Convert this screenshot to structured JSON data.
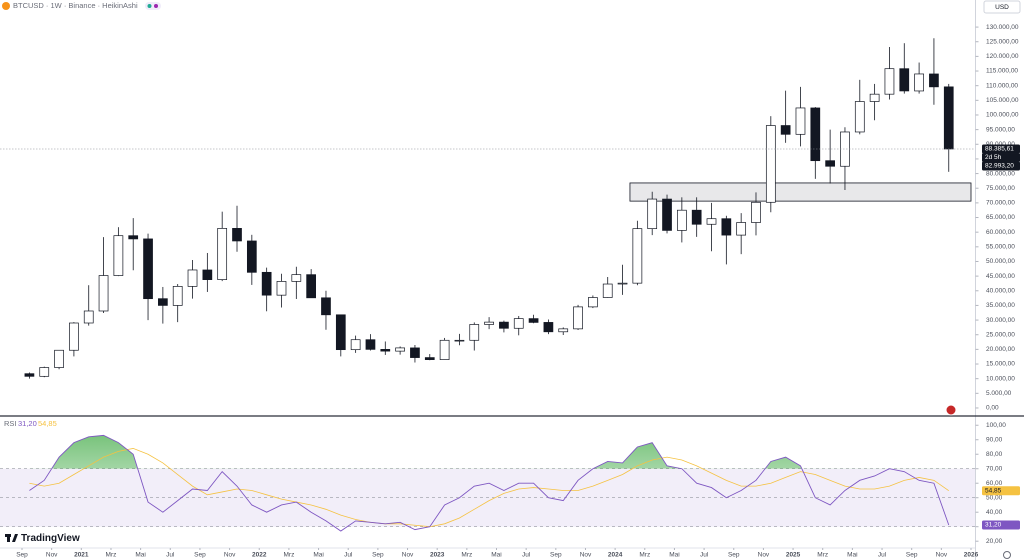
{
  "header": {
    "title": "BTCUSD · 1W · Binance · HeikinAshi",
    "currency": "USD",
    "brand": "TradingView"
  },
  "chart_data": [
    {
      "type": "candlestick",
      "x": [
        "2020-09",
        "2020-10",
        "2020-11",
        "2020-12",
        "2021-01",
        "2021-02",
        "2021-03",
        "2021-04",
        "2021-05",
        "2021-06",
        "2021-07",
        "2021-08",
        "2021-09",
        "2021-10",
        "2021-11",
        "2021-12",
        "2022-01",
        "2022-02",
        "2022-03",
        "2022-04",
        "2022-05",
        "2022-06",
        "2022-07",
        "2022-08",
        "2022-09",
        "2022-10",
        "2022-11",
        "2022-12",
        "2023-01",
        "2023-02",
        "2023-03",
        "2023-04",
        "2023-05",
        "2023-06",
        "2023-07",
        "2023-08",
        "2023-09",
        "2023-10",
        "2023-11",
        "2023-12",
        "2024-01",
        "2024-02",
        "2024-03",
        "2024-04",
        "2024-05",
        "2024-06",
        "2024-07",
        "2024-08",
        "2024-09",
        "2024-10",
        "2024-11",
        "2024-12",
        "2025-01",
        "2025-02",
        "2025-03",
        "2025-04",
        "2025-05",
        "2025-06",
        "2025-07",
        "2025-08",
        "2025-09",
        "2025-10",
        "2025-11"
      ],
      "open": [
        11700,
        10800,
        13800,
        19700,
        29000,
        33100,
        45200,
        58800,
        57700,
        37300,
        35000,
        41500,
        47100,
        43800,
        61300,
        57000,
        46300,
        38500,
        43200,
        45500,
        37600,
        31800,
        19900,
        23300,
        20000,
        19400,
        20500,
        17200,
        16500,
        23100,
        23100,
        28500,
        29300,
        27200,
        30500,
        29200,
        26000,
        27000,
        34500,
        37700,
        42300,
        42600,
        61200,
        71300,
        60600,
        67500,
        62700,
        64600,
        59000,
        63300,
        70200,
        96400,
        93400,
        102400,
        84400,
        82500,
        94200,
        104600,
        107100,
        115800,
        108200,
        114000,
        109600
      ],
      "high": [
        12100,
        14100,
        19800,
        29300,
        41900,
        58300,
        61700,
        64800,
        59500,
        41300,
        42300,
        50500,
        52900,
        67000,
        69000,
        59100,
        47900,
        45800,
        48200,
        47400,
        40000,
        31900,
        24700,
        25200,
        22700,
        21000,
        21500,
        18400,
        23900,
        25300,
        29200,
        31000,
        29800,
        31400,
        31800,
        30200,
        27500,
        35200,
        38400,
        44700,
        48900,
        63900,
        73800,
        72800,
        71900,
        71900,
        70000,
        65600,
        66500,
        73600,
        99600,
        108300,
        109600,
        102700,
        95000,
        95800,
        112000,
        110600,
        123200,
        124500,
        117900,
        126200,
        110600
      ],
      "low": [
        10000,
        10500,
        13200,
        17600,
        28100,
        32400,
        45000,
        47000,
        30000,
        28800,
        29300,
        37300,
        39600,
        43300,
        53300,
        42000,
        33000,
        34300,
        37200,
        37600,
        26700,
        17600,
        18800,
        19600,
        18100,
        18200,
        15500,
        16300,
        16500,
        21400,
        19600,
        26900,
        25800,
        24800,
        28900,
        25200,
        24900,
        26600,
        34100,
        37600,
        38600,
        41900,
        59000,
        59600,
        56500,
        58400,
        53500,
        49000,
        52500,
        58900,
        66800,
        90500,
        89300,
        78200,
        76600,
        74400,
        93400,
        98200,
        105300,
        107300,
        107300,
        103500,
        80600
      ],
      "close": [
        10800,
        13800,
        19700,
        29000,
        33100,
        45200,
        58800,
        57700,
        37300,
        35000,
        41500,
        47100,
        43800,
        61300,
        57000,
        46300,
        38500,
        43200,
        45500,
        37600,
        31800,
        19900,
        23300,
        20000,
        19400,
        20500,
        17200,
        16500,
        23100,
        23100,
        28500,
        29300,
        27200,
        30500,
        29200,
        26000,
        27000,
        34500,
        37700,
        42300,
        42600,
        61200,
        71300,
        60600,
        67500,
        62700,
        64600,
        59000,
        63300,
        70200,
        96400,
        93400,
        102400,
        84400,
        82500,
        94200,
        104600,
        107100,
        115800,
        108200,
        114000,
        109600,
        88385.61
      ],
      "up_color": "#ffffff",
      "down_color": "#131722",
      "outline_color": "#131722",
      "xlim": [
        "2020-09",
        "2026-01"
      ],
      "ylim": [
        -2400,
        133100
      ],
      "yticks": [
        {
          "value": 0,
          "label": "0,00"
        },
        {
          "value": 5000,
          "label": "5.000,00"
        },
        {
          "value": 10000,
          "label": "10.000,00"
        },
        {
          "value": 15000,
          "label": "15.000,00"
        },
        {
          "value": 20000,
          "label": "20.000,00"
        },
        {
          "value": 25000,
          "label": "25.000,00"
        },
        {
          "value": 30000,
          "label": "30.000,00"
        },
        {
          "value": 35000,
          "label": "35.000,00"
        },
        {
          "value": 40000,
          "label": "40.000,00"
        },
        {
          "value": 45000,
          "label": "45.000,00"
        },
        {
          "value": 50000,
          "label": "50.000,00"
        },
        {
          "value": 55000,
          "label": "55.000,00"
        },
        {
          "value": 60000,
          "label": "60.000,00"
        },
        {
          "value": 65000,
          "label": "65.000,00"
        },
        {
          "value": 70000,
          "label": "70.000,00"
        },
        {
          "value": 75000,
          "label": "75.000,00"
        },
        {
          "value": 80000,
          "label": "80.000,00"
        },
        {
          "value": 85000,
          "label": "85.000,00"
        },
        {
          "value": 90000,
          "label": "90.000,00"
        },
        {
          "value": 95000,
          "label": "95.000,00"
        },
        {
          "value": 100000,
          "label": "100.000,00"
        },
        {
          "value": 105000,
          "label": "105.000,00"
        },
        {
          "value": 110000,
          "label": "110.000,00"
        },
        {
          "value": 115000,
          "label": "115.000,00"
        },
        {
          "value": 120000,
          "label": "120.000,00"
        },
        {
          "value": 125000,
          "label": "125.000,00"
        },
        {
          "value": 130000,
          "label": "130.000,00"
        }
      ],
      "grid": false,
      "last_price": {
        "value": 88385.61,
        "label": "88.385,61"
      },
      "countdown": "2d 5h",
      "low_price": {
        "value": 82993.2,
        "label": "82.993,20"
      },
      "zone": {
        "low": 70600,
        "high": 76800,
        "start": "2024-02",
        "end": "2026-01"
      }
    },
    {
      "type": "line",
      "title": "RSI",
      "x": [
        "2020-09",
        "2020-10",
        "2020-11",
        "2020-12",
        "2021-01",
        "2021-02",
        "2021-03",
        "2021-04",
        "2021-05",
        "2021-06",
        "2021-07",
        "2021-08",
        "2021-09",
        "2021-10",
        "2021-11",
        "2021-12",
        "2022-01",
        "2022-02",
        "2022-03",
        "2022-04",
        "2022-05",
        "2022-06",
        "2022-07",
        "2022-08",
        "2022-09",
        "2022-10",
        "2022-11",
        "2022-12",
        "2023-01",
        "2023-02",
        "2023-03",
        "2023-04",
        "2023-05",
        "2023-06",
        "2023-07",
        "2023-08",
        "2023-09",
        "2023-10",
        "2023-11",
        "2023-12",
        "2024-01",
        "2024-02",
        "2024-03",
        "2024-04",
        "2024-05",
        "2024-06",
        "2024-07",
        "2024-08",
        "2024-09",
        "2024-10",
        "2024-11",
        "2024-12",
        "2025-01",
        "2025-02",
        "2025-03",
        "2025-04",
        "2025-05",
        "2025-06",
        "2025-07",
        "2025-08",
        "2025-09",
        "2025-10",
        "2025-11"
      ],
      "series": [
        {
          "color": "#7e57c2",
          "values": [
            55,
            62,
            78,
            88,
            92,
            93,
            88,
            80,
            47,
            40,
            48,
            56,
            55,
            68,
            58,
            45,
            40,
            45,
            47,
            40,
            34,
            27,
            34,
            33,
            32,
            33,
            28,
            30,
            45,
            50,
            58,
            60,
            55,
            60,
            60,
            50,
            48,
            62,
            70,
            75,
            74,
            85,
            88,
            72,
            70,
            60,
            57,
            50,
            55,
            62,
            75,
            78,
            72,
            50,
            45,
            55,
            62,
            65,
            70,
            68,
            62,
            60,
            31.2
          ],
          "last": {
            "value": 31.2,
            "label": "31,20"
          }
        },
        {
          "color": "#f5c242",
          "values": [
            60,
            58,
            60,
            66,
            72,
            78,
            82,
            84,
            80,
            74,
            66,
            58,
            52,
            54,
            56,
            55,
            52,
            49,
            47,
            45,
            42,
            38,
            35,
            33,
            32,
            32,
            31,
            30,
            32,
            36,
            42,
            48,
            53,
            56,
            57,
            56,
            55,
            55,
            58,
            62,
            66,
            72,
            76,
            78,
            76,
            72,
            67,
            62,
            58,
            58,
            60,
            64,
            68,
            66,
            62,
            58,
            56,
            56,
            58,
            62,
            64,
            62,
            54.85
          ],
          "last": {
            "value": 54.85,
            "label": "54,85"
          }
        }
      ],
      "band": [
        30,
        70
      ],
      "midline": 50,
      "overbought_fill": "#4caf50",
      "xlim": [
        "2020-09",
        "2026-01"
      ],
      "ylim": [
        16,
        105
      ],
      "yticks": [
        {
          "value": 20,
          "label": "20,00"
        },
        {
          "value": 30,
          "label": "30,00"
        },
        {
          "value": 40,
          "label": "40,00"
        },
        {
          "value": 50,
          "label": "50,00"
        },
        {
          "value": 60,
          "label": "60,00"
        },
        {
          "value": 70,
          "label": "70,00"
        },
        {
          "value": 80,
          "label": "80,00"
        },
        {
          "value": 90,
          "label": "90,00"
        },
        {
          "value": 100,
          "label": "100,00"
        }
      ],
      "xticks": [
        {
          "value": "2020-09",
          "label": "Sep"
        },
        {
          "value": "2020-11",
          "label": "Nov"
        },
        {
          "value": "2021-01",
          "label": "2021"
        },
        {
          "value": "2021-03",
          "label": "Mrz"
        },
        {
          "value": "2021-05",
          "label": "Mai"
        },
        {
          "value": "2021-07",
          "label": "Jul"
        },
        {
          "value": "2021-09",
          "label": "Sep"
        },
        {
          "value": "2021-11",
          "label": "Nov"
        },
        {
          "value": "2022-01",
          "label": "2022"
        },
        {
          "value": "2022-03",
          "label": "Mrz"
        },
        {
          "value": "2022-05",
          "label": "Mai"
        },
        {
          "value": "2022-07",
          "label": "Jul"
        },
        {
          "value": "2022-09",
          "label": "Sep"
        },
        {
          "value": "2022-11",
          "label": "Nov"
        },
        {
          "value": "2023-01",
          "label": "2023"
        },
        {
          "value": "2023-03",
          "label": "Mrz"
        },
        {
          "value": "2023-05",
          "label": "Mai"
        },
        {
          "value": "2023-07",
          "label": "Jul"
        },
        {
          "value": "2023-09",
          "label": "Sep"
        },
        {
          "value": "2023-11",
          "label": "Nov"
        },
        {
          "value": "2024-01",
          "label": "2024"
        },
        {
          "value": "2024-03",
          "label": "Mrz"
        },
        {
          "value": "2024-05",
          "label": "Mai"
        },
        {
          "value": "2024-07",
          "label": "Jul"
        },
        {
          "value": "2024-09",
          "label": "Sep"
        },
        {
          "value": "2024-11",
          "label": "Nov"
        },
        {
          "value": "2025-01",
          "label": "2025"
        },
        {
          "value": "2025-03",
          "label": "Mrz"
        },
        {
          "value": "2025-05",
          "label": "Mai"
        },
        {
          "value": "2025-07",
          "label": "Jul"
        },
        {
          "value": "2025-09",
          "label": "Sep"
        },
        {
          "value": "2025-11",
          "label": "Nov"
        },
        {
          "value": "2026-01",
          "label": "2026"
        }
      ]
    }
  ]
}
